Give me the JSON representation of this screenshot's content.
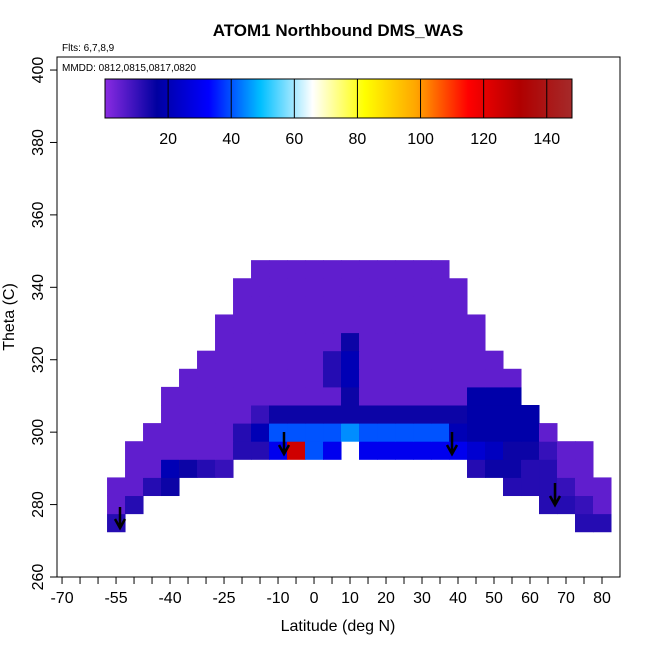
{
  "chart_data": {
    "type": "heatmap",
    "title": "ATOM1 Northbound DMS_WAS",
    "subtitle": "Flts: 6,7,8,9",
    "annotation": "MMDD: 0812,0815,0817,0820",
    "xlabel": "Latitude (deg N)",
    "ylabel": "Theta (C)",
    "xlim": [
      -71.4,
      85
    ],
    "ylim": [
      260,
      403.6
    ],
    "xticks": [
      -70,
      -55,
      -40,
      -25,
      -10,
      0,
      10,
      20,
      30,
      40,
      50,
      60,
      70,
      80
    ],
    "xminorticks": [
      -65,
      -60,
      -50,
      -45,
      -35,
      -30,
      -20,
      -15,
      -5,
      5,
      15,
      25,
      35,
      45,
      55,
      65,
      75
    ],
    "yticks": [
      260,
      280,
      300,
      320,
      340,
      360,
      380,
      400
    ],
    "x": [
      -55,
      -50,
      -45,
      -40,
      -35,
      -30,
      -25,
      -20,
      -15,
      -10,
      -5,
      0,
      5,
      10,
      15,
      20,
      25,
      30,
      35,
      40,
      45,
      50,
      55,
      60,
      65,
      70,
      75,
      80
    ],
    "y": [
      275,
      280,
      285,
      290,
      295,
      300,
      305,
      310,
      315,
      320,
      325,
      330,
      335,
      340,
      345
    ],
    "cell_width": 5,
    "cell_height": 5,
    "values": [
      [
        12,
        null,
        null,
        null,
        null,
        null,
        null,
        null,
        null,
        null,
        null,
        null,
        null,
        null,
        null,
        null,
        null,
        null,
        null,
        null,
        null,
        null,
        null,
        null,
        null,
        null,
        12,
        12
      ],
      [
        5,
        12,
        null,
        null,
        null,
        null,
        null,
        null,
        null,
        null,
        null,
        null,
        null,
        null,
        null,
        null,
        null,
        null,
        null,
        null,
        null,
        null,
        null,
        null,
        12,
        12,
        10,
        5
      ],
      [
        5,
        5,
        12,
        15,
        null,
        null,
        null,
        null,
        null,
        null,
        null,
        null,
        null,
        null,
        null,
        null,
        null,
        null,
        null,
        null,
        null,
        null,
        12,
        12,
        12,
        10,
        5,
        5
      ],
      [
        null,
        5,
        5,
        20,
        15,
        12,
        10,
        null,
        null,
        null,
        null,
        null,
        null,
        null,
        null,
        null,
        null,
        null,
        null,
        null,
        12,
        15,
        15,
        12,
        12,
        5,
        5,
        null
      ],
      [
        null,
        5,
        5,
        5,
        5,
        5,
        5,
        12,
        12,
        30,
        125,
        40,
        30,
        null,
        30,
        30,
        30,
        30,
        30,
        30,
        25,
        22,
        15,
        15,
        10,
        5,
        5,
        null
      ],
      [
        null,
        null,
        5,
        5,
        5,
        5,
        5,
        12,
        20,
        40,
        40,
        40,
        40,
        45,
        40,
        40,
        40,
        40,
        40,
        20,
        18,
        18,
        18,
        18,
        5,
        null,
        null,
        null
      ],
      [
        null,
        null,
        null,
        5,
        5,
        5,
        5,
        5,
        10,
        15,
        15,
        15,
        15,
        15,
        15,
        15,
        15,
        15,
        15,
        15,
        18,
        18,
        18,
        18,
        null,
        null,
        null,
        null
      ],
      [
        null,
        null,
        null,
        5,
        5,
        5,
        5,
        5,
        5,
        5,
        5,
        5,
        5,
        15,
        5,
        5,
        5,
        5,
        5,
        5,
        18,
        18,
        18,
        null,
        null,
        null,
        null,
        null
      ],
      [
        null,
        null,
        null,
        null,
        5,
        5,
        5,
        5,
        5,
        5,
        5,
        5,
        12,
        20,
        5,
        5,
        5,
        5,
        5,
        5,
        5,
        5,
        5,
        null,
        null,
        null,
        null,
        null
      ],
      [
        null,
        null,
        null,
        null,
        null,
        5,
        5,
        5,
        5,
        5,
        5,
        5,
        12,
        20,
        5,
        5,
        5,
        5,
        5,
        5,
        5,
        5,
        null,
        null,
        null,
        null,
        null,
        null
      ],
      [
        null,
        null,
        null,
        null,
        null,
        null,
        5,
        5,
        5,
        5,
        5,
        5,
        5,
        15,
        5,
        5,
        5,
        5,
        5,
        5,
        5,
        null,
        null,
        null,
        null,
        null,
        null,
        null
      ],
      [
        null,
        null,
        null,
        null,
        null,
        null,
        5,
        5,
        5,
        5,
        5,
        5,
        5,
        5,
        5,
        5,
        5,
        5,
        5,
        5,
        5,
        null,
        null,
        null,
        null,
        null,
        null,
        null
      ],
      [
        null,
        null,
        null,
        null,
        null,
        null,
        null,
        5,
        5,
        5,
        5,
        5,
        5,
        5,
        5,
        5,
        5,
        5,
        5,
        5,
        null,
        null,
        null,
        null,
        null,
        null,
        null,
        null
      ],
      [
        null,
        null,
        null,
        null,
        null,
        null,
        null,
        5,
        5,
        5,
        5,
        5,
        5,
        5,
        5,
        5,
        5,
        5,
        5,
        5,
        null,
        null,
        null,
        null,
        null,
        null,
        null,
        null
      ],
      [
        null,
        null,
        null,
        null,
        null,
        null,
        null,
        null,
        5,
        5,
        5,
        5,
        5,
        5,
        5,
        5,
        5,
        5,
        5,
        null,
        null,
        null,
        null,
        null,
        null,
        null,
        null,
        null
      ]
    ],
    "colorbar": {
      "lim": [
        0,
        148
      ],
      "ticks": [
        20,
        40,
        60,
        80,
        100,
        120,
        140
      ],
      "colors": [
        "#8a2be2",
        "#0000a0",
        "#0000ff",
        "#00bfff",
        "#ffffff",
        "#ffff00",
        "#ffa500",
        "#ff0000",
        "#b00000",
        "#a52a2a"
      ]
    }
  }
}
